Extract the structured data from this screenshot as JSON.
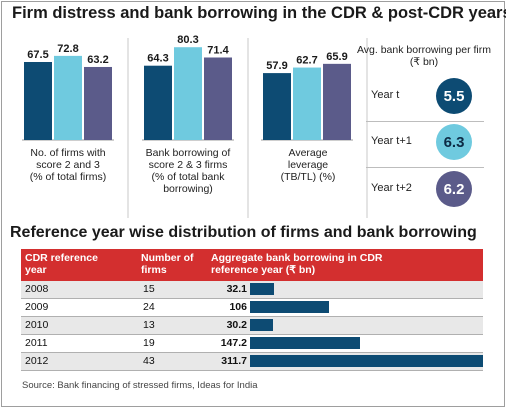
{
  "title_top": "Firm distress and bank borrowing in the CDR & post-CDR years",
  "title_bottom": "Reference year wise distribution of firms and bank borrowing",
  "source": "Source: Bank financing of stressed firms, Ideas for India",
  "colors": {
    "year_t": "#0d4b73",
    "year_t1": "#6fcadf",
    "year_t2": "#5b5b8a",
    "header": "#d32f2f",
    "table_bar": "#0d4b73"
  },
  "chart_data": [
    {
      "type": "bar",
      "categories": [
        "No. of firms with score 2 and 3 (% of total firms)",
        "Bank borrowing of score 2 & 3 firms (% of total bank borrowing)",
        "Average leverage (TB/TL) (%)"
      ],
      "category_lines": [
        [
          "No. of firms with",
          "score 2 and 3",
          "(% of total firms)"
        ],
        [
          "Bank borrowing of",
          "score 2 & 3 firms",
          "(% of total bank",
          "borrowing)"
        ],
        [
          "Average",
          "leverage",
          "(TB/TL) (%)"
        ]
      ],
      "series": [
        {
          "name": "Year t",
          "values": [
            67.5,
            64.3,
            57.9
          ]
        },
        {
          "name": "Year t+1",
          "values": [
            72.8,
            80.3,
            62.7
          ]
        },
        {
          "name": "Year t+2",
          "values": [
            63.2,
            71.4,
            65.9
          ]
        }
      ],
      "ylim": [
        0,
        90
      ]
    },
    {
      "type": "bubble",
      "title": "Avg. bank borrowing per firm (₹ bn)",
      "categories": [
        "Year t",
        "Year t+1",
        "Year t+2"
      ],
      "values": [
        "5.5",
        "6.3",
        "6.2"
      ]
    },
    {
      "type": "table",
      "title": "Reference year wise distribution of firms and bank borrowing",
      "columns": [
        "CDR reference year",
        "Number of firms",
        "Aggregate bank borrowing in CDR reference year (₹ bn)"
      ],
      "rows": [
        {
          "year": "2008",
          "firms": "15",
          "borrowing": 32.1,
          "borrowing_label": "32.1"
        },
        {
          "year": "2009",
          "firms": "24",
          "borrowing": 106,
          "borrowing_label": "106"
        },
        {
          "year": "2010",
          "firms": "13",
          "borrowing": 30.2,
          "borrowing_label": "30.2"
        },
        {
          "year": "2011",
          "firms": "19",
          "borrowing": 147.2,
          "borrowing_label": "147.2"
        },
        {
          "year": "2012",
          "firms": "43",
          "borrowing": 311.7,
          "borrowing_label": "311.7"
        }
      ],
      "xlim": [
        0,
        311.7
      ]
    }
  ]
}
